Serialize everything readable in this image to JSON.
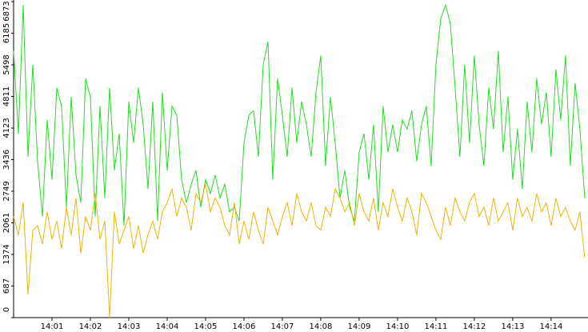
{
  "chart_data": {
    "type": "line",
    "x": [
      0,
      0.125,
      0.25,
      0.375,
      0.5,
      0.625,
      0.75,
      0.875,
      1,
      1.125,
      1.25,
      1.375,
      1.5,
      1.625,
      1.75,
      1.875,
      2,
      2.125,
      2.25,
      2.375,
      2.5,
      2.625,
      2.75,
      2.875,
      3,
      3.125,
      3.25,
      3.375,
      3.5,
      3.625,
      3.75,
      3.875,
      4,
      4.125,
      4.25,
      4.375,
      4.5,
      4.625,
      4.75,
      4.875,
      5,
      5.125,
      5.25,
      5.375,
      5.5,
      5.625,
      5.75,
      5.875,
      6,
      6.125,
      6.25,
      6.375,
      6.5,
      6.625,
      6.75,
      6.875,
      7,
      7.125,
      7.25,
      7.375,
      7.5,
      7.625,
      7.75,
      7.875,
      8,
      8.125,
      8.25,
      8.375,
      8.5,
      8.625,
      8.75,
      8.875,
      9,
      9.125,
      9.25,
      9.375,
      9.5,
      9.625,
      9.75,
      9.875,
      10,
      10.125,
      10.25,
      10.375,
      10.5,
      10.625,
      10.75,
      10.875,
      11,
      11.125,
      11.25,
      11.375,
      11.5,
      11.625,
      11.75,
      11.875,
      12,
      12.125,
      12.25,
      12.375,
      12.5,
      12.625,
      12.75,
      12.875,
      13,
      13.125,
      13.25,
      13.375,
      13.5,
      13.625,
      13.75,
      13.875,
      14,
      14.125,
      14.25,
      14.375,
      14.5,
      14.625,
      14.75,
      14.875
    ],
    "series": [
      {
        "color": "#22dd22",
        "values": [
          5800,
          4000,
          6800,
          3500,
          5500,
          3400,
          2200,
          4300,
          3000,
          5000,
          4600,
          2400,
          4800,
          3100,
          2500,
          5200,
          4800,
          2200,
          4600,
          2600,
          5000,
          3200,
          4000,
          2000,
          4700,
          3800,
          5000,
          4200,
          2800,
          4700,
          2100,
          4900,
          3200,
          4600,
          4400,
          3000,
          2500,
          2900,
          3200,
          2400,
          3000,
          2700,
          3100,
          2600,
          2900,
          2300,
          2400,
          2100,
          3800,
          4400,
          4500,
          3500,
          5500,
          6000,
          3000,
          5200,
          4400,
          3500,
          5000,
          3800,
          4700,
          4200,
          3500,
          4900,
          5700,
          3300,
          4800,
          3800,
          2600,
          3200,
          2400,
          2100,
          3600,
          4000,
          3000,
          4200,
          2300,
          4600,
          3600,
          4200,
          3600,
          4300,
          4100,
          4500,
          3400,
          4200,
          4600,
          3300,
          5500,
          6500,
          6800,
          6400,
          5000,
          3500,
          5500,
          3800,
          5700,
          4200,
          3300,
          5000,
          4100,
          5800,
          3600,
          4800,
          3000,
          4100,
          2800,
          4700,
          3600,
          5200,
          4200,
          4900,
          3500,
          5400,
          4300,
          5700,
          3300,
          5100,
          4100,
          2600
        ]
      },
      {
        "color": "#f0b400",
        "values": [
          2200,
          1800,
          2500,
          500,
          1900,
          2000,
          1600,
          2300,
          1700,
          2100,
          1500,
          2400,
          1800,
          2600,
          1400,
          2200,
          1900,
          2700,
          1700,
          2100,
          0,
          2300,
          1600,
          1900,
          2200,
          1500,
          2000,
          1400,
          1800,
          2100,
          1700,
          2300,
          2500,
          2800,
          2200,
          2600,
          2400,
          1900,
          2700,
          2500,
          2900,
          2300,
          2600,
          2400,
          2000,
          1800,
          2500,
          1600,
          2100,
          1700,
          2300,
          1900,
          1600,
          2400,
          2100,
          1800,
          2200,
          2500,
          2000,
          2700,
          2300,
          2100,
          2500,
          2000,
          1900,
          2400,
          2200,
          2800,
          2600,
          2300,
          2500,
          2000,
          2700,
          2300,
          2100,
          2600,
          1900,
          2500,
          2200,
          2800,
          2400,
          2100,
          2600,
          2300,
          1800,
          2700,
          2500,
          2200,
          1900,
          1700,
          2400,
          2000,
          2600,
          2300,
          2100,
          2500,
          2700,
          2200,
          2400,
          2000,
          2600,
          2100,
          2300,
          2500,
          1900,
          2600,
          2200,
          2400,
          2100,
          2700,
          2300,
          2500,
          2000,
          2600,
          2200,
          2400,
          2100,
          1900,
          2300,
          1300
        ]
      }
    ],
    "xlim": [
      0,
      14.96
    ],
    "xticks": [
      {
        "value": 1,
        "label": "14:01"
      },
      {
        "value": 2,
        "label": "14:02"
      },
      {
        "value": 3,
        "label": "14:03"
      },
      {
        "value": 4,
        "label": "14:04"
      },
      {
        "value": 5,
        "label": "14:05"
      },
      {
        "value": 6,
        "label": "14:06"
      },
      {
        "value": 7,
        "label": "14:07"
      },
      {
        "value": 8,
        "label": "14:08"
      },
      {
        "value": 9,
        "label": "14:09"
      },
      {
        "value": 10,
        "label": "14:10"
      },
      {
        "value": 11,
        "label": "14:11"
      },
      {
        "value": 12,
        "label": "14:12"
      },
      {
        "value": 13,
        "label": "14:13"
      },
      {
        "value": 14,
        "label": "14:14"
      }
    ],
    "ylim": [
      0,
      6873
    ],
    "yticks": [
      0,
      687,
      1374,
      2061,
      2749,
      3436,
      4123,
      4811,
      5498,
      6185,
      6873
    ]
  }
}
